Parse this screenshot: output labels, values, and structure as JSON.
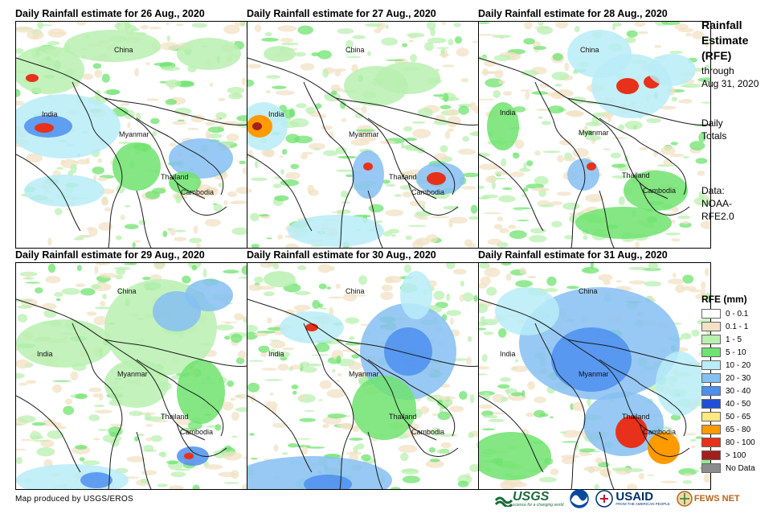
{
  "panels": [
    {
      "title": "Daily Rainfall estimate for 26 Aug., 2020"
    },
    {
      "title": "Daily Rainfall estimate for 27 Aug., 2020"
    },
    {
      "title": "Daily Rainfall estimate for 28 Aug., 2020"
    },
    {
      "title": "Daily Rainfall estimate for 29 Aug., 2020"
    },
    {
      "title": "Daily Rainfall estimate for 30 Aug., 2020"
    },
    {
      "title": "Daily Rainfall estimate for 31 Aug., 2020"
    }
  ],
  "places": {
    "china": "China",
    "india": "India",
    "myanmar": "Myanmar",
    "thailand": "Thailand",
    "cambodia": "Cambodia"
  },
  "side": {
    "title_lines": [
      "Rainfall",
      "Estimate",
      "(RFE)"
    ],
    "through": "through",
    "date": "Aug 31, 2020",
    "daily": "Daily",
    "totals": "Totals",
    "data_label": "Data:",
    "data_source_1": "NOAA-",
    "data_source_2": "RFE2.0"
  },
  "legend": {
    "title": "RFE (mm)",
    "items": [
      {
        "label": "0 - 0.1",
        "color": "#ffffff"
      },
      {
        "label": "0.1 - 1",
        "color": "#f2e1c4"
      },
      {
        "label": "1 - 5",
        "color": "#b9f0b0"
      },
      {
        "label": "5 - 10",
        "color": "#6fe36f"
      },
      {
        "label": "10 - 20",
        "color": "#b8ecf7"
      },
      {
        "label": "20 - 30",
        "color": "#86c0f2"
      },
      {
        "label": "30 - 40",
        "color": "#4d8ff0"
      },
      {
        "label": "40 - 50",
        "color": "#1f4fd6"
      },
      {
        "label": "50 - 65",
        "color": "#ffe880"
      },
      {
        "label": "65 - 80",
        "color": "#ff9a00"
      },
      {
        "label": "80 - 100",
        "color": "#e8311a"
      },
      {
        "label": "> 100",
        "color": "#a51e1e"
      },
      {
        "label": "No Data",
        "color": "#8c8c8c"
      }
    ]
  },
  "footer": {
    "credit": "Map produced by USGS/EROS",
    "logo_usgs": "USGS",
    "logo_usgs_tag": "science for a changing world",
    "logo_usaid": "USAID",
    "logo_usaid_tag": "FROM THE AMERICAN PEOPLE",
    "logo_fews": "FEWS NET"
  }
}
